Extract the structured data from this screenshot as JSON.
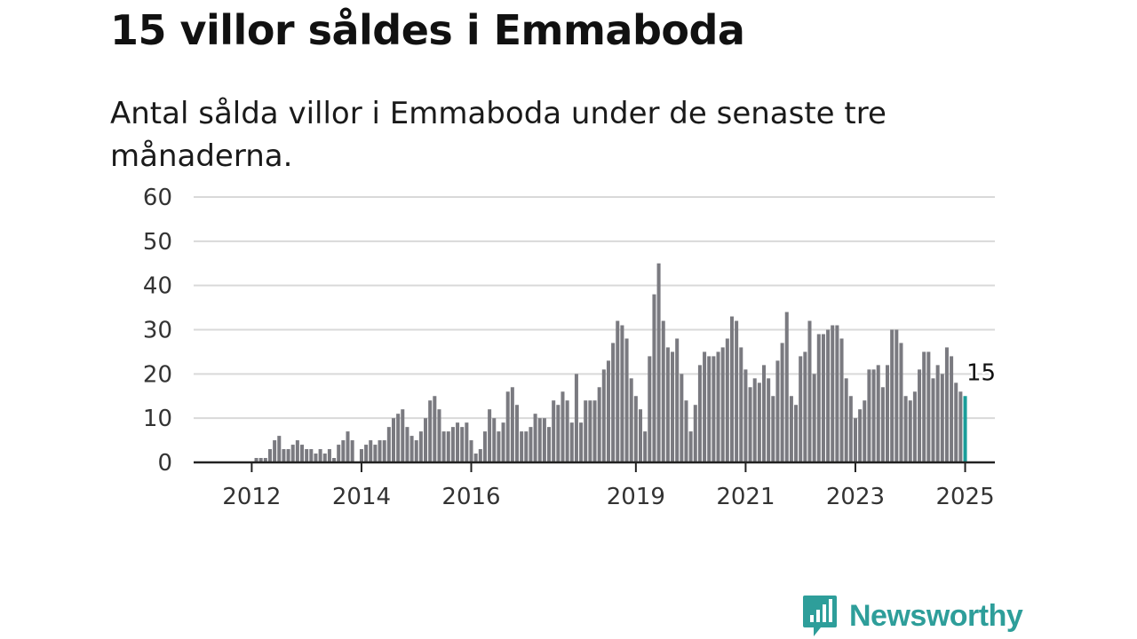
{
  "title": "15 villor såldes i Emmaboda",
  "subtitle": "Antal sålda villor i Emmaboda under de senaste tre månaderna.",
  "brand": {
    "name": "Newsworthy",
    "color": "#2e9e9a"
  },
  "chart_data": {
    "type": "bar",
    "ylim": [
      0,
      60
    ],
    "yticks": [
      "0",
      "10",
      "20",
      "30",
      "40",
      "50",
      "60"
    ],
    "xticks": [
      "2012",
      "2014",
      "2016",
      "2019",
      "2021",
      "2023",
      "2025"
    ],
    "grid": true,
    "start_month": "2011-02",
    "bar_color": "#7a7a80",
    "highlight_color": "#1a9e9a",
    "highlight_label": "15",
    "values": [
      0,
      0,
      0,
      0,
      0,
      0,
      0,
      0,
      0,
      0,
      0,
      0,
      1,
      1,
      1,
      3,
      5,
      6,
      3,
      3,
      4,
      5,
      4,
      3,
      3,
      2,
      3,
      2,
      3,
      1,
      4,
      5,
      7,
      5,
      0,
      3,
      4,
      5,
      4,
      5,
      5,
      8,
      10,
      11,
      12,
      8,
      6,
      5,
      7,
      10,
      14,
      15,
      12,
      7,
      7,
      8,
      9,
      8,
      9,
      5,
      2,
      3,
      7,
      12,
      10,
      7,
      9,
      16,
      17,
      13,
      7,
      7,
      8,
      11,
      10,
      10,
      8,
      14,
      13,
      16,
      14,
      9,
      20,
      9,
      14,
      14,
      14,
      17,
      21,
      23,
      27,
      32,
      31,
      28,
      19,
      15,
      12,
      7,
      24,
      38,
      45,
      32,
      26,
      25,
      28,
      20,
      14,
      7,
      13,
      22,
      25,
      24,
      24,
      25,
      26,
      28,
      33,
      32,
      26,
      21,
      17,
      19,
      18,
      22,
      19,
      15,
      23,
      27,
      34,
      15,
      13,
      24,
      25,
      32,
      20,
      29,
      29,
      30,
      31,
      31,
      28,
      19,
      15,
      10,
      12,
      14,
      21,
      21,
      22,
      17,
      22,
      30,
      30,
      27,
      15,
      14,
      16,
      21,
      25,
      25,
      19,
      22,
      20,
      26,
      24,
      18,
      16,
      15
    ]
  }
}
